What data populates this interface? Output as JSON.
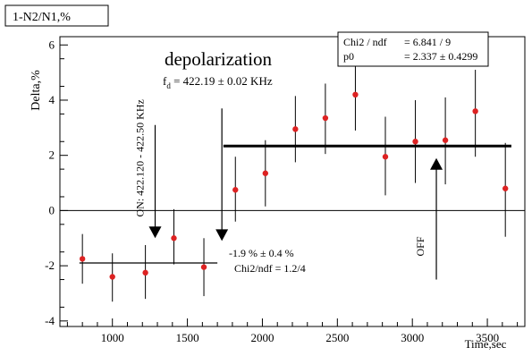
{
  "chart_data": {
    "type": "scatter",
    "canvas_title": "1-N2/N1,%",
    "title": "depolarization",
    "subtitle": "f_d = 422.19 ± 0.02 KHz",
    "subtitle_main": "f",
    "subtitle_sub": "d",
    "subtitle_rest": " = 422.19 ± 0.02 KHz",
    "xlabel": "Time,sec",
    "ylabel": "Delta,%",
    "xlim": [
      650,
      3750
    ],
    "ylim": [
      -4.2,
      6.3
    ],
    "x_ticks": [
      1000,
      1500,
      2000,
      2500,
      3000,
      3500
    ],
    "x_tick_labels": [
      "1000",
      "1500",
      "2000",
      "2500",
      "3000",
      "3500"
    ],
    "y_ticks": [
      -4,
      -2,
      0,
      2,
      4,
      6
    ],
    "y_tick_labels": [
      "-4",
      "-2",
      "0",
      "2",
      "4",
      "6"
    ],
    "marker_color": "#dd2222",
    "series": [
      {
        "x": [
          800,
          1000,
          1220,
          1410,
          1610,
          1820,
          2020,
          2220,
          2420,
          2620,
          2820,
          3020,
          3220,
          3420,
          3620
        ],
        "y": [
          -1.75,
          -2.4,
          -2.25,
          -1.0,
          -2.05,
          0.75,
          1.35,
          2.95,
          3.35,
          4.2,
          1.95,
          2.5,
          2.55,
          3.6,
          0.8
        ],
        "y_low": [
          -2.65,
          -3.3,
          -3.2,
          -1.95,
          -3.1,
          -0.4,
          0.15,
          1.75,
          2.05,
          2.9,
          0.55,
          1.0,
          0.95,
          1.95,
          -0.95
        ],
        "y_high": [
          -0.85,
          -1.55,
          -1.25,
          0.05,
          -1.0,
          1.95,
          2.55,
          4.15,
          4.6,
          5.45,
          3.4,
          4.0,
          4.1,
          5.1,
          2.45
        ]
      }
    ],
    "fits": [
      {
        "x": [
          780,
          1700
        ],
        "y": [
          -1.9,
          -1.9
        ],
        "label": "-1.9 %  ±  0.4 %",
        "chi2_label": "Chi2/ndf = 1.2/4"
      },
      {
        "x": [
          1740,
          3660
        ],
        "y": [
          2.337,
          2.337
        ]
      }
    ],
    "stats_box": {
      "rows": [
        {
          "name": "Chi2 / ndf",
          "value": "= 6.841 / 9"
        },
        {
          "name": "p0",
          "value": "= 2.337  ±  0.4299"
        }
      ]
    },
    "annotations": [
      {
        "text": "ON: 422.120 - 422.50 KHz",
        "x": 1285,
        "y_tail": 3.1,
        "y_head": -1.0
      },
      {
        "text": "",
        "x": 1730,
        "y_tail": 3.7,
        "y_head": -1.1
      },
      {
        "text": "OFF",
        "x": 3160,
        "y_tail": -2.5,
        "y_head": 1.9
      }
    ]
  }
}
